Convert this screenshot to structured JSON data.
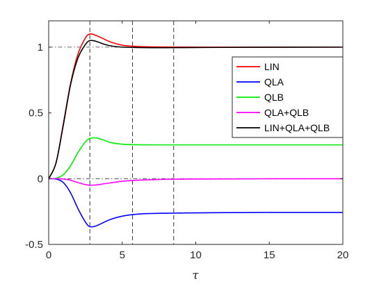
{
  "chart_data": {
    "type": "line",
    "title": "",
    "xlabel": "τ",
    "ylabel": "",
    "xlim": [
      0,
      20
    ],
    "ylim": [
      -0.5,
      1.2
    ],
    "xticks": [
      0,
      5,
      10,
      15,
      20
    ],
    "yticks": [
      -0.5,
      0,
      0.5,
      1
    ],
    "ytick_labels": [
      "-0.5",
      "0",
      "0.5",
      "1"
    ],
    "grid": false,
    "legend_position": "right",
    "reference_lines_y": [
      0,
      1
    ],
    "reference_lines_x": [
      2.8,
      5.7,
      8.5
    ],
    "series": [
      {
        "name": "LIN",
        "color": "#ff0000",
        "x": [
          0,
          0.5,
          1,
          1.5,
          2,
          2.5,
          2.8,
          3.2,
          3.7,
          4.2,
          5,
          6,
          7,
          8,
          10,
          12,
          15,
          20
        ],
        "y": [
          0,
          0.12,
          0.42,
          0.73,
          0.95,
          1.07,
          1.1,
          1.09,
          1.065,
          1.04,
          1.015,
          1.005,
          1.002,
          1.001,
          1.0,
          1.0,
          1.0,
          1.0
        ]
      },
      {
        "name": "QLA",
        "color": "#0000ff",
        "x": [
          0,
          0.5,
          1,
          1.5,
          2,
          2.5,
          2.8,
          3.2,
          3.7,
          4.2,
          5,
          6,
          7,
          8,
          10,
          12,
          15,
          20
        ],
        "y": [
          0,
          -0.003,
          -0.03,
          -0.11,
          -0.23,
          -0.33,
          -0.365,
          -0.36,
          -0.335,
          -0.31,
          -0.285,
          -0.27,
          -0.265,
          -0.263,
          -0.26,
          -0.258,
          -0.257,
          -0.257
        ]
      },
      {
        "name": "QLB",
        "color": "#00ee00",
        "x": [
          0,
          0.5,
          1,
          1.5,
          2,
          2.5,
          2.8,
          3.2,
          3.7,
          4.2,
          5,
          6,
          7,
          8,
          10,
          12,
          15,
          20
        ],
        "y": [
          0,
          0.003,
          0.03,
          0.1,
          0.2,
          0.28,
          0.305,
          0.31,
          0.295,
          0.275,
          0.262,
          0.258,
          0.257,
          0.257,
          0.257,
          0.257,
          0.257,
          0.257
        ]
      },
      {
        "name": "QLA+QLB",
        "color": "#ff00ff",
        "x": [
          0,
          0.5,
          1,
          1.5,
          2,
          2.5,
          2.8,
          3.2,
          3.7,
          4.2,
          5,
          6,
          7,
          8,
          10,
          12,
          15,
          20
        ],
        "y": [
          0,
          0,
          -0.003,
          -0.012,
          -0.03,
          -0.045,
          -0.05,
          -0.048,
          -0.04,
          -0.032,
          -0.02,
          -0.012,
          -0.008,
          -0.005,
          -0.003,
          -0.002,
          -0.001,
          -0.001
        ]
      },
      {
        "name": "LIN+QLA+QLB",
        "color": "#000000",
        "x": [
          0,
          0.5,
          1,
          1.5,
          2,
          2.5,
          2.8,
          3.2,
          3.7,
          4.2,
          5,
          6,
          7,
          8,
          10,
          12,
          15,
          20
        ],
        "y": [
          0,
          0.12,
          0.41,
          0.72,
          0.92,
          1.02,
          1.05,
          1.045,
          1.025,
          1.01,
          1.0,
          0.997,
          0.996,
          0.996,
          0.997,
          0.998,
          0.999,
          1.0
        ]
      }
    ]
  }
}
